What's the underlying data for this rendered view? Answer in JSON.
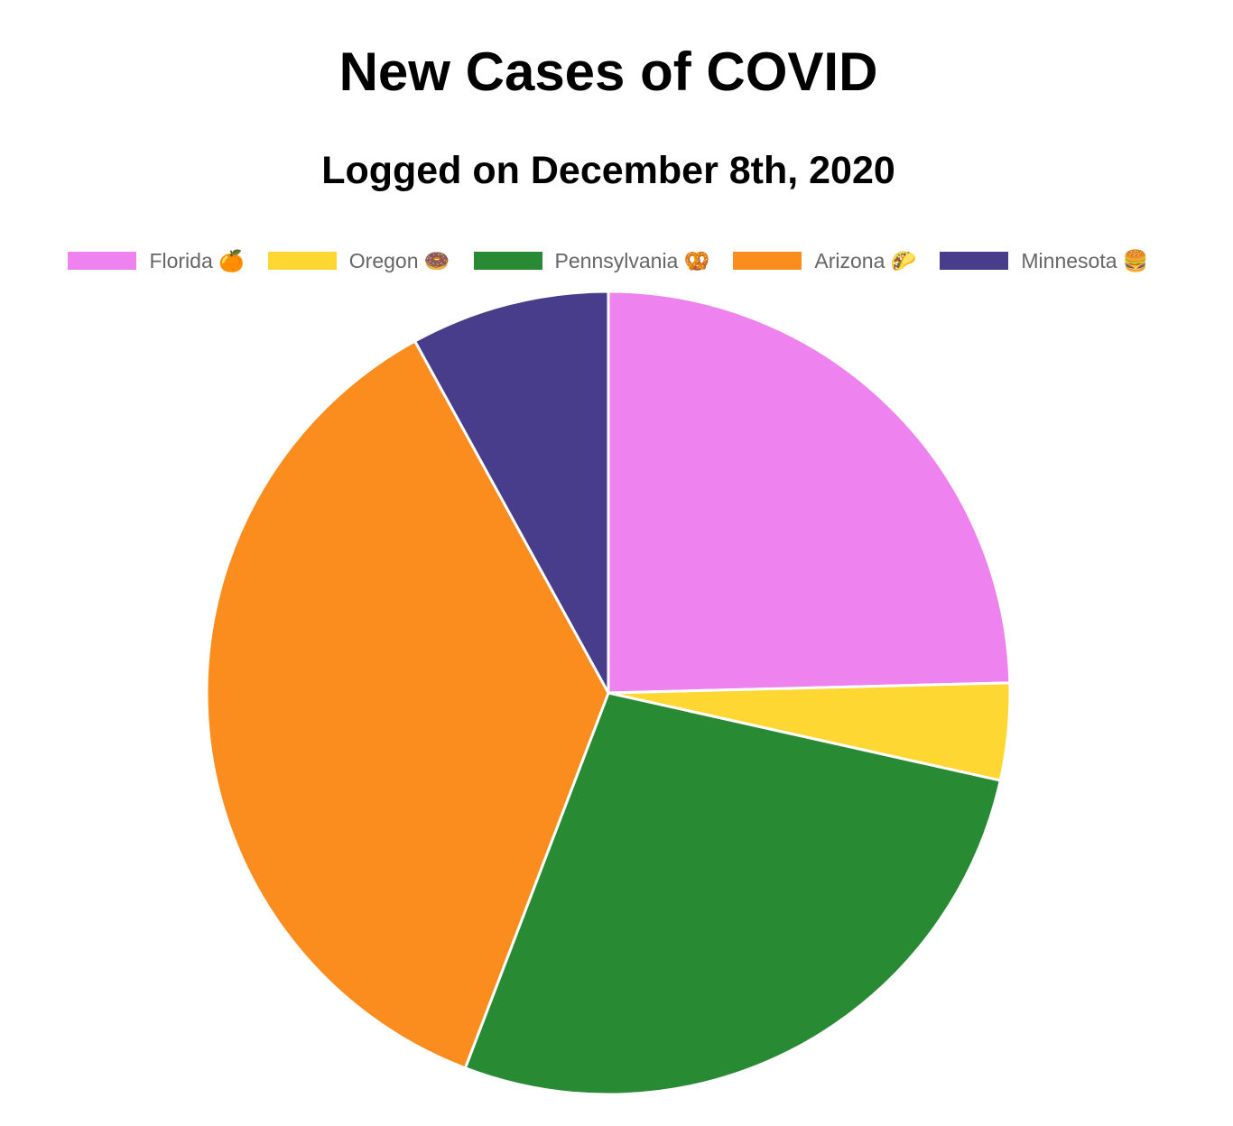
{
  "chart_data": {
    "type": "pie",
    "title": "New Cases of COVID",
    "subtitle": "Logged on December 8th, 2020",
    "categories": [
      "Florida 🍊",
      "Oregon 🍩",
      "Pennsylvania 🥨",
      "Arizona 🌮",
      "Minnesota 🍔"
    ],
    "values": [
      24.6,
      3.9,
      27.3,
      36.2,
      8.0
    ],
    "colors": [
      "#ee82ee",
      "#ffd732",
      "#288a32",
      "#fb8c1e",
      "#483d8b"
    ],
    "legend_position": "top",
    "start_angle_deg": -90,
    "direction": "clockwise"
  }
}
